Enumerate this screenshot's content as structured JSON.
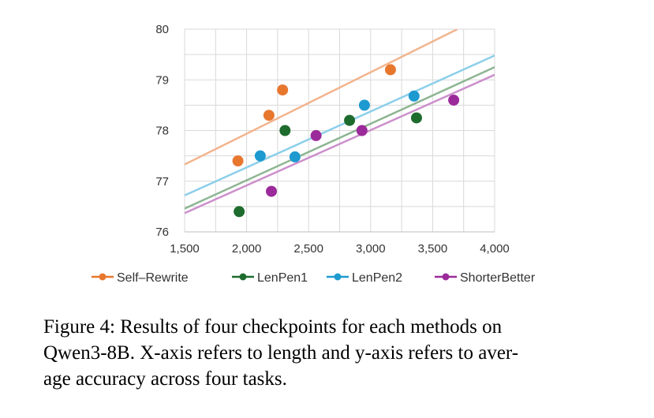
{
  "chart_data": {
    "type": "scatter",
    "xlim": [
      1500,
      4000
    ],
    "ylim": [
      76,
      80
    ],
    "x_ticks": [
      "1,500",
      "2,000",
      "2,500",
      "3,000",
      "3,500",
      "4,000"
    ],
    "y_ticks": [
      "76",
      "77",
      "78",
      "79",
      "80"
    ],
    "grid": true,
    "legend_position": "bottom",
    "series": [
      {
        "name": "Self–Rewrite",
        "color": "#E8772E",
        "trend_color": "#F2B48E",
        "points": [
          [
            1930,
            77.4
          ],
          [
            2180,
            78.3
          ],
          [
            2290,
            78.8
          ],
          [
            3160,
            79.2
          ]
        ],
        "trendline": [
          [
            1500,
            77.33
          ],
          [
            3700,
            80.0
          ]
        ]
      },
      {
        "name": "LenPen1",
        "color": "#1E6B2E",
        "trend_color": "#8DB592",
        "points": [
          [
            1940,
            76.4
          ],
          [
            2310,
            78.0
          ],
          [
            2830,
            78.2
          ],
          [
            3370,
            78.25
          ]
        ],
        "trendline": [
          [
            1500,
            76.46
          ],
          [
            4000,
            79.25
          ]
        ]
      },
      {
        "name": "LenPen2",
        "color": "#1D9AD0",
        "trend_color": "#8DCFEA",
        "points": [
          [
            2110,
            77.5
          ],
          [
            2390,
            77.48
          ],
          [
            2950,
            78.5
          ],
          [
            3350,
            78.68
          ]
        ],
        "trendline": [
          [
            1500,
            76.72
          ],
          [
            4000,
            79.48
          ]
        ]
      },
      {
        "name": "ShorterBetter",
        "color": "#9B2A9A",
        "trend_color": "#CC90CC",
        "points": [
          [
            2200,
            76.8
          ],
          [
            2560,
            77.9
          ],
          [
            2930,
            78.0
          ],
          [
            3670,
            78.6
          ]
        ],
        "trendline": [
          [
            1500,
            76.37
          ],
          [
            4000,
            79.1
          ]
        ]
      }
    ]
  },
  "caption": {
    "line1": "Figure 4: Results of four checkpoints for each methods on",
    "line2": "Qwen3-8B. X-axis refers to length and y-axis refers to aver-",
    "line3": "age accuracy across four tasks."
  }
}
